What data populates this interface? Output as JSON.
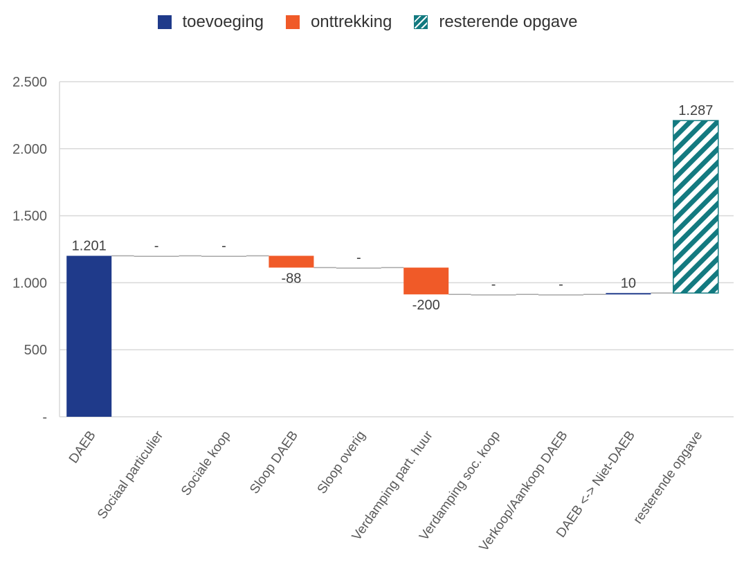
{
  "colors": {
    "toevoeging": "#1f3a8a",
    "onttrekking": "#f05a28",
    "resterende": "#137a80",
    "grid": "#d9d9d9",
    "connector": "#a6a6a6"
  },
  "legend": [
    {
      "key": "toevoeging",
      "label": "toevoeging",
      "style": "solid"
    },
    {
      "key": "onttrekking",
      "label": "onttrekking",
      "style": "solid"
    },
    {
      "key": "resterende",
      "label": "resterende opgave",
      "style": "hatch"
    }
  ],
  "chart_data": {
    "type": "bar",
    "subtype": "waterfall",
    "ylim": [
      0,
      2500
    ],
    "yticks": [
      {
        "value": 0,
        "label": "-"
      },
      {
        "value": 500,
        "label": "500"
      },
      {
        "value": 1000,
        "label": "1.000"
      },
      {
        "value": 1500,
        "label": "1.500"
      },
      {
        "value": 2000,
        "label": "2.000"
      },
      {
        "value": 2500,
        "label": "2.500"
      }
    ],
    "grid": true,
    "legend_position": "top-center",
    "categories": [
      "DAEB",
      "Sociaal particulier",
      "Sociale koop",
      "Sloop DAEB",
      "Sloop overig",
      "Verdamping part. huur",
      "Verdamping soc. koop",
      "Verkoop/Aankoop DAEB",
      "DAEB <-> Niet-DAEB",
      "resterende opgave"
    ],
    "bars": [
      {
        "category": "DAEB",
        "series": "toevoeging",
        "start": 0,
        "end": 1201,
        "label": "1.201",
        "label_pos": "above"
      },
      {
        "category": "Sociaal particulier",
        "series": "toevoeging",
        "start": 1201,
        "end": 1201,
        "label": "-",
        "label_pos": "above"
      },
      {
        "category": "Sociale koop",
        "series": "toevoeging",
        "start": 1201,
        "end": 1201,
        "label": "-",
        "label_pos": "above"
      },
      {
        "category": "Sloop DAEB",
        "series": "onttrekking",
        "start": 1201,
        "end": 1113,
        "label": "-88",
        "label_pos": "below"
      },
      {
        "category": "Sloop overig",
        "series": "onttrekking",
        "start": 1113,
        "end": 1113,
        "label": "-",
        "label_pos": "above"
      },
      {
        "category": "Verdamping part. huur",
        "series": "onttrekking",
        "start": 1113,
        "end": 913,
        "label": "-200",
        "label_pos": "below"
      },
      {
        "category": "Verdamping soc. koop",
        "series": "onttrekking",
        "start": 913,
        "end": 913,
        "label": "-",
        "label_pos": "above"
      },
      {
        "category": "Verkoop/Aankoop DAEB",
        "series": "onttrekking",
        "start": 913,
        "end": 913,
        "label": "-",
        "label_pos": "above"
      },
      {
        "category": "DAEB <-> Niet-DAEB",
        "series": "toevoeging",
        "start": 913,
        "end": 923,
        "label": "10",
        "label_pos": "above"
      },
      {
        "category": "resterende opgave",
        "series": "resterende",
        "start": 923,
        "end": 2210,
        "label": "1.287",
        "label_pos": "above"
      }
    ]
  }
}
